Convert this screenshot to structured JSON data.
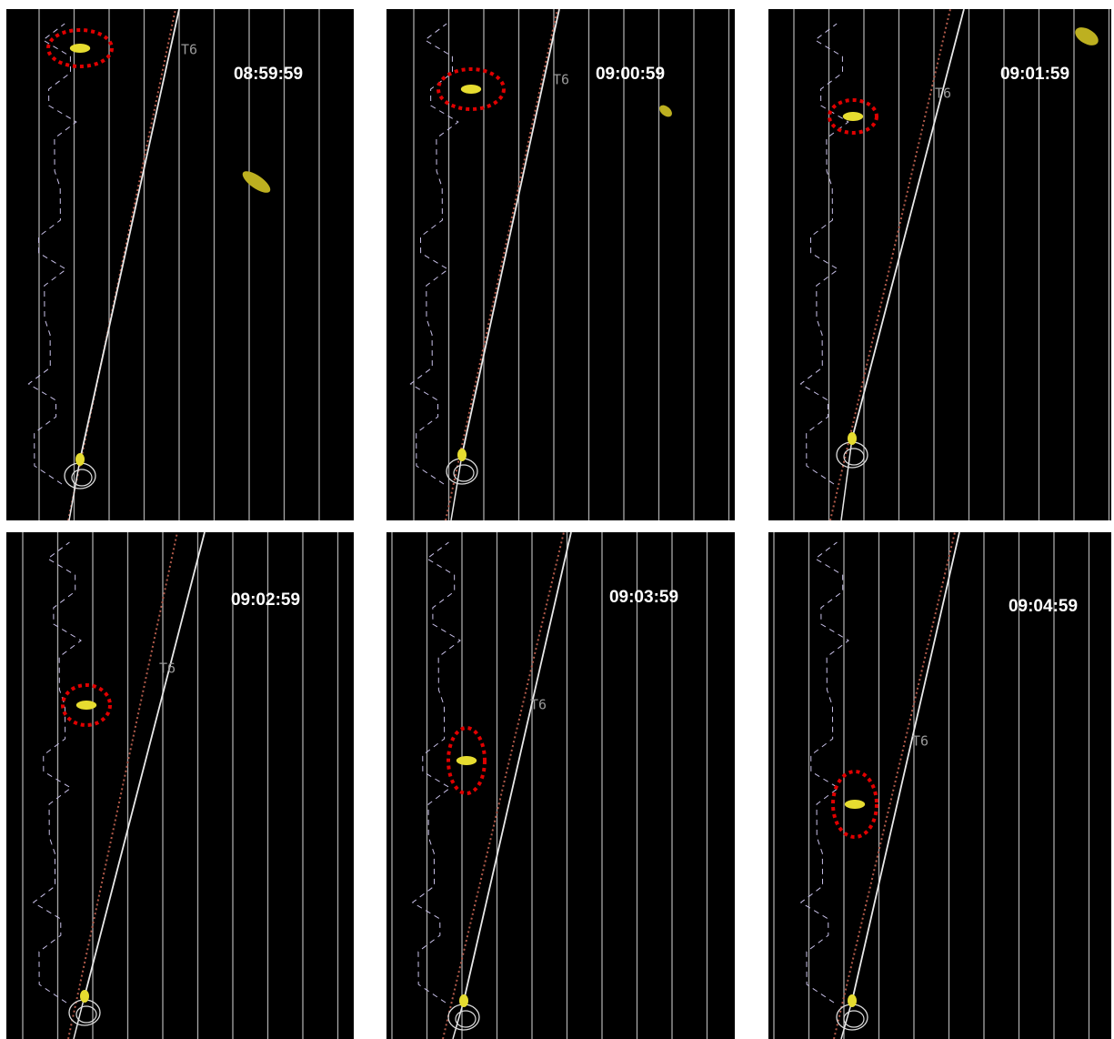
{
  "panels": [
    {
      "time": "08:59:59",
      "track_label": "T6"
    },
    {
      "time": "09:00:59",
      "track_label": "T6"
    },
    {
      "time": "09:01:59",
      "track_label": "T6"
    },
    {
      "time": "09:02:59",
      "track_label": "T6"
    },
    {
      "time": "09:03:59",
      "track_label": "T6"
    },
    {
      "time": "09:04:59",
      "track_label": "T6"
    }
  ]
}
